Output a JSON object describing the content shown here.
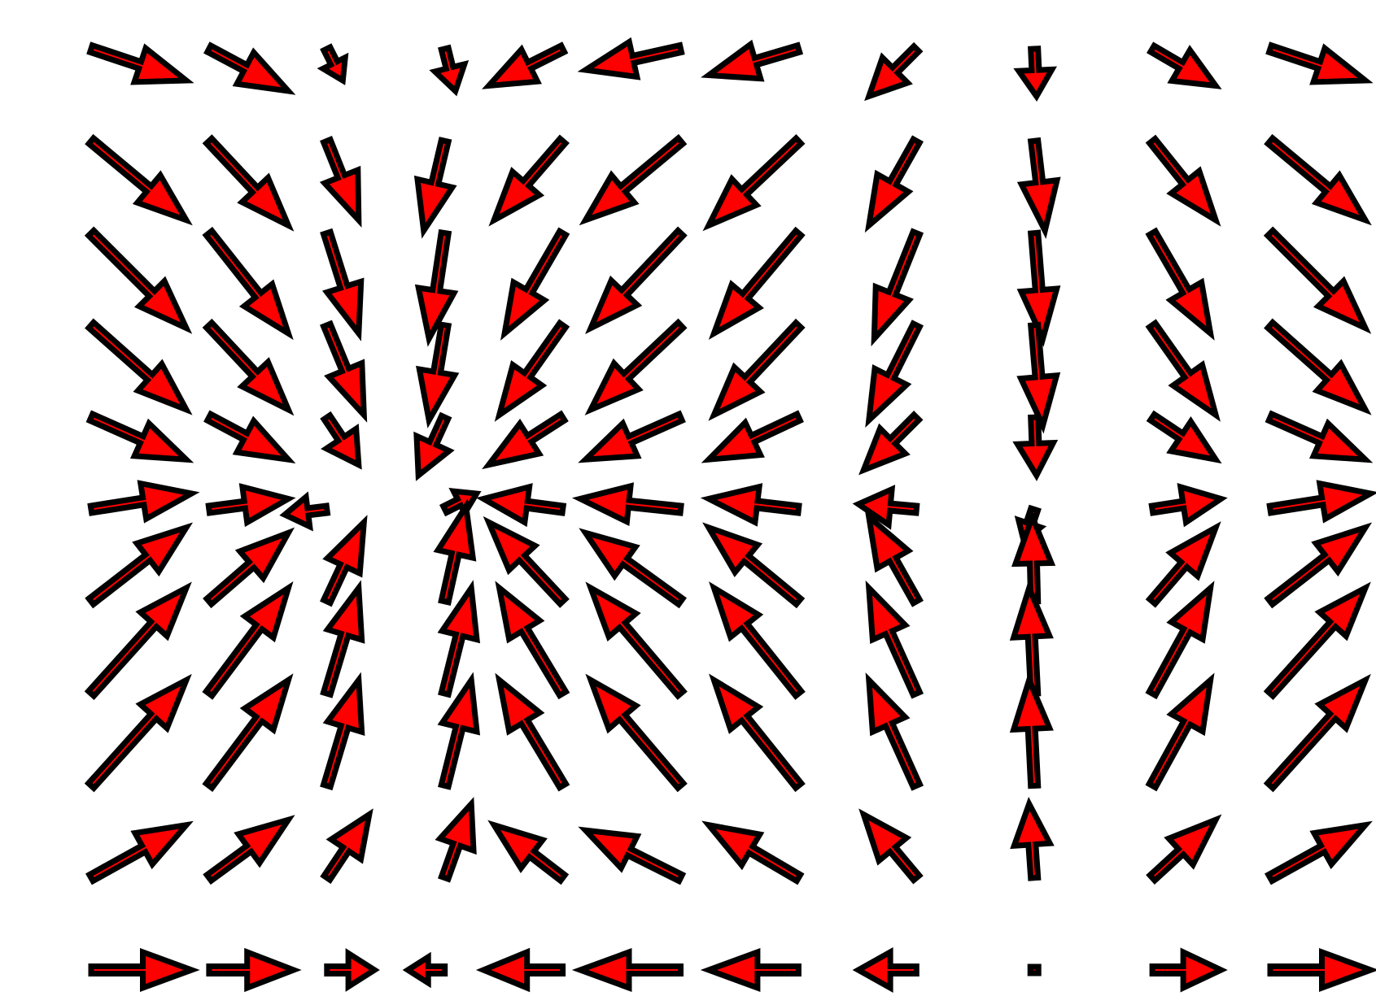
{
  "chart_data": {
    "type": "quiver",
    "title": "",
    "xlabel": "",
    "ylabel": "",
    "grid": false,
    "legend": "none",
    "axes_visible": false,
    "colors": {
      "arrow_fill": "#ff0000",
      "arrow_edge": "#000000",
      "background": "#ffffff"
    },
    "x": [
      0,
      1,
      2,
      3,
      4,
      5,
      6,
      7,
      8,
      9,
      10
    ],
    "y": [
      10,
      9,
      8,
      7,
      6,
      5,
      4,
      3,
      2,
      1,
      0
    ],
    "u": [
      [
        0.9,
        0.75,
        0.15,
        0.1,
        -0.7,
        -0.9,
        -0.85,
        -0.45,
        0.02,
        0.6,
        0.9
      ],
      [
        0.9,
        0.75,
        0.3,
        -0.2,
        -0.65,
        -0.9,
        -0.85,
        -0.45,
        0.1,
        0.6,
        0.9
      ],
      [
        0.9,
        0.75,
        0.3,
        -0.15,
        -0.55,
        -0.85,
        -0.8,
        -0.4,
        0.08,
        0.55,
        0.9
      ],
      [
        0.9,
        0.75,
        0.35,
        -0.15,
        -0.6,
        -0.85,
        -0.8,
        -0.45,
        0.08,
        0.6,
        0.9
      ],
      [
        0.9,
        0.75,
        0.3,
        -0.25,
        -0.7,
        -0.9,
        -0.85,
        -0.5,
        0.02,
        0.6,
        0.9
      ],
      [
        0.95,
        0.75,
        -0.4,
        0.3,
        -0.75,
        -0.95,
        -0.85,
        -0.55,
        -0.1,
        0.65,
        0.95
      ],
      [
        0.9,
        0.75,
        0.35,
        0.2,
        -0.7,
        -0.9,
        -0.85,
        -0.45,
        -0.02,
        0.6,
        0.9
      ],
      [
        0.9,
        0.75,
        0.3,
        0.25,
        -0.6,
        -0.85,
        -0.8,
        -0.45,
        -0.05,
        0.55,
        0.9
      ],
      [
        0.9,
        0.75,
        0.3,
        0.25,
        -0.6,
        -0.85,
        -0.8,
        -0.45,
        -0.05,
        0.55,
        0.9
      ],
      [
        0.9,
        0.75,
        0.4,
        0.25,
        -0.65,
        -0.9,
        -0.85,
        -0.5,
        -0.05,
        0.6,
        0.9
      ],
      [
        0.95,
        0.8,
        0.45,
        -0.35,
        -0.75,
        -0.95,
        -0.85,
        -0.55,
        0.0,
        0.65,
        0.95
      ]
    ],
    "v": [
      [
        -0.3,
        -0.4,
        -0.3,
        -0.4,
        -0.35,
        -0.2,
        -0.25,
        -0.45,
        -0.45,
        -0.35,
        -0.3
      ],
      [
        -0.75,
        -0.8,
        -0.75,
        -0.85,
        -0.75,
        -0.75,
        -0.8,
        -0.8,
        -0.85,
        -0.75,
        -0.75
      ],
      [
        -0.9,
        -0.95,
        -0.95,
        -1.0,
        -0.95,
        -0.9,
        -0.95,
        -1.0,
        -1.0,
        -0.95,
        -0.9
      ],
      [
        -0.8,
        -0.8,
        -0.85,
        -0.9,
        -0.85,
        -0.8,
        -0.85,
        -0.9,
        -0.95,
        -0.85,
        -0.8
      ],
      [
        -0.4,
        -0.4,
        -0.45,
        -0.55,
        -0.45,
        -0.4,
        -0.4,
        -0.5,
        -0.55,
        -0.4,
        -0.4
      ],
      [
        0.15,
        0.1,
        -0.05,
        0.15,
        0.1,
        0.1,
        0.1,
        0.05,
        -0.3,
        0.1,
        0.15
      ],
      [
        0.7,
        0.65,
        0.75,
        0.9,
        0.75,
        0.65,
        0.7,
        0.8,
        0.8,
        0.7,
        0.7
      ],
      [
        1.0,
        1.0,
        1.0,
        1.0,
        1.0,
        1.0,
        1.0,
        1.0,
        1.0,
        1.0,
        1.0
      ],
      [
        1.0,
        1.0,
        1.0,
        1.0,
        1.0,
        1.0,
        1.0,
        1.0,
        1.0,
        1.0,
        1.0
      ],
      [
        0.5,
        0.55,
        0.6,
        0.7,
        0.5,
        0.45,
        0.5,
        0.6,
        0.7,
        0.55,
        0.5
      ],
      [
        0.0,
        0.0,
        0.0,
        0.0,
        0.0,
        0.0,
        0.0,
        0.0,
        0.0,
        0.0,
        0.0
      ]
    ]
  }
}
